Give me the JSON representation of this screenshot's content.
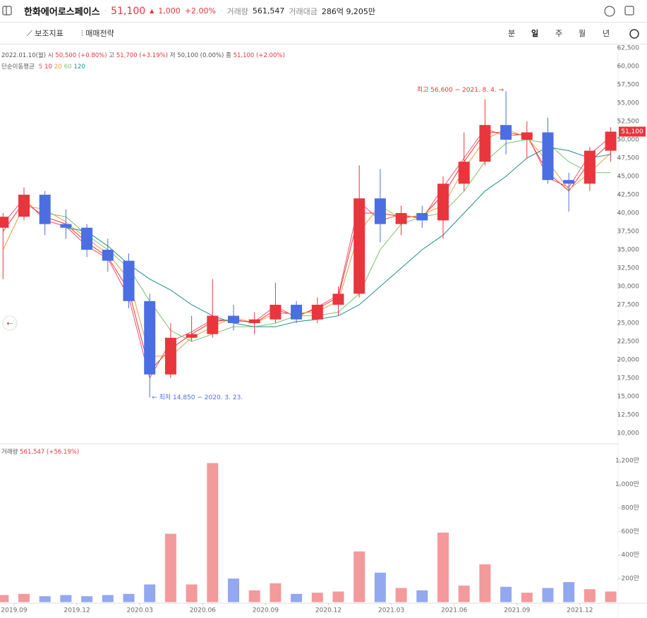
{
  "header": {
    "name": "한화에어로스페이스",
    "price": "51,100",
    "change": "1,000",
    "change_pct": "+2.00%",
    "volume_label": "거래량",
    "volume": "561,547",
    "amount_label": "거래대금",
    "amount": "286억 9,205만"
  },
  "toolbar": {
    "indicators": "보조지표",
    "strategy": "매매전략",
    "periods": [
      "분",
      "일",
      "주",
      "월",
      "년"
    ]
  },
  "ohlc": {
    "date": "2022.01.10(월)",
    "open_label": "시",
    "open": "50,500 (+0.80%)",
    "high_label": "고",
    "high": "51,700 (+3.19%)",
    "low_label": "저",
    "low": "50,100 (0.00%)",
    "close_label": "종",
    "close": "51,100 (+2.00%)"
  },
  "ma_label": "단순이동평균",
  "volume_info": {
    "label": "거래량",
    "value": "561,547 (+56.19%)"
  },
  "chart_data": [
    {
      "type": "candlestick",
      "x": [
        "2019.08",
        "2019.09",
        "2019.10",
        "2019.11",
        "2019.12",
        "2020.01",
        "2020.02",
        "2020.03",
        "2020.04",
        "2020.05",
        "2020.06",
        "2020.07",
        "2020.08",
        "2020.09",
        "2020.10",
        "2020.11",
        "2020.12",
        "2021.01",
        "2021.02",
        "2021.03",
        "2021.04",
        "2021.05",
        "2021.06",
        "2021.07",
        "2021.08",
        "2021.09",
        "2021.10",
        "2021.11",
        "2021.12",
        "2022.01"
      ],
      "open": [
        38000,
        39500,
        42500,
        38500,
        38000,
        35000,
        33500,
        28000,
        18000,
        23000,
        23500,
        26000,
        25000,
        25500,
        27500,
        25500,
        27500,
        29000,
        42000,
        38500,
        40000,
        39000,
        44000,
        47000,
        52000,
        50000,
        51000,
        44500,
        44000,
        48500
      ],
      "high": [
        40000,
        43500,
        43000,
        40500,
        38500,
        36500,
        34500,
        29000,
        25000,
        26000,
        31000,
        27500,
        26500,
        30500,
        28000,
        28500,
        30000,
        46500,
        46000,
        41000,
        41000,
        45000,
        51000,
        55500,
        56600,
        52500,
        53000,
        45500,
        49000,
        51700
      ],
      "low": [
        31000,
        39000,
        37000,
        36500,
        34000,
        32000,
        27000,
        14850,
        17500,
        22500,
        23000,
        24000,
        23500,
        25000,
        25000,
        25000,
        26000,
        28500,
        36000,
        37000,
        38000,
        36500,
        43000,
        46500,
        48000,
        47500,
        44000,
        40200,
        43000,
        47000
      ],
      "close": [
        39500,
        42500,
        38500,
        38000,
        35000,
        33500,
        28000,
        18000,
        23000,
        23500,
        26000,
        25000,
        25500,
        27500,
        25500,
        27500,
        29000,
        42000,
        38500,
        40000,
        39000,
        44000,
        47000,
        52000,
        50000,
        51000,
        44500,
        44000,
        48500,
        51100
      ],
      "up_color": "#e8363c",
      "down_color": "#4b6ee3",
      "series": [
        {
          "name": "5",
          "color": "#f0506e",
          "values": [
            38500,
            42000,
            39000,
            38200,
            35500,
            33800,
            28500,
            17500,
            22500,
            23800,
            25500,
            25300,
            25200,
            27300,
            25800,
            27200,
            28800,
            41500,
            39000,
            39800,
            39200,
            43500,
            47500,
            51500,
            50500,
            50800,
            44800,
            43500,
            48000,
            50400
          ]
        },
        {
          "name": "10",
          "color": "#e8363c",
          "values": [
            37500,
            41500,
            39500,
            38500,
            36000,
            34000,
            29500,
            18500,
            21500,
            23500,
            25200,
            25500,
            25000,
            26800,
            26000,
            27000,
            28500,
            40000,
            40000,
            39500,
            39500,
            42500,
            47000,
            51000,
            51000,
            50500,
            45500,
            43000,
            47000,
            49600
          ]
        },
        {
          "name": "20",
          "color": "#f29a3a",
          "values": [
            35000,
            41000,
            40500,
            38800,
            36500,
            34500,
            31000,
            20500,
            20500,
            23000,
            24500,
            25800,
            25000,
            26300,
            26300,
            26600,
            28000,
            37500,
            41000,
            39200,
            39800,
            41000,
            46000,
            50000,
            51500,
            50300,
            47000,
            43200,
            45500,
            48200
          ]
        },
        {
          "name": "60",
          "color": "#7cc06d",
          "values": [
            null,
            null,
            40000,
            39500,
            37000,
            35000,
            32500,
            28000,
            24000,
            22500,
            23500,
            24500,
            24500,
            25000,
            26000,
            26000,
            26500,
            29000,
            35000,
            38500,
            39500,
            40000,
            43000,
            47000,
            49500,
            50000,
            49500,
            47000,
            45500,
            45500
          ]
        },
        {
          "name": "120",
          "color": "#1e8e84",
          "values": [
            null,
            null,
            null,
            38000,
            37500,
            35500,
            33000,
            31000,
            29500,
            27500,
            26000,
            25000,
            24500,
            24500,
            25200,
            25500,
            26000,
            27500,
            30000,
            32500,
            35000,
            37000,
            40000,
            43000,
            45000,
            47500,
            49000,
            48500,
            47500,
            48000
          ]
        }
      ],
      "ylim": [
        8650,
        63080
      ],
      "yticks": [
        {
          "value": 10000,
          "label": "10,000"
        },
        {
          "value": 12500,
          "label": "12,500"
        },
        {
          "value": 15000,
          "label": "15,000"
        },
        {
          "value": 17500,
          "label": "17,500"
        },
        {
          "value": 20000,
          "label": "20,000"
        },
        {
          "value": 22500,
          "label": "22,500"
        },
        {
          "value": 25000,
          "label": "25,000"
        },
        {
          "value": 27500,
          "label": "27,500"
        },
        {
          "value": 30000,
          "label": "30,000"
        },
        {
          "value": 32500,
          "label": "32,500"
        },
        {
          "value": 35000,
          "label": "35,000"
        },
        {
          "value": 37500,
          "label": "37,500"
        },
        {
          "value": 40000,
          "label": "40,000"
        },
        {
          "value": 42500,
          "label": "42,500"
        },
        {
          "value": 45000,
          "label": "45,000"
        },
        {
          "value": 47500,
          "label": "47,500"
        },
        {
          "value": 50000,
          "label": "50,000"
        },
        {
          "value": 52500,
          "label": "52,500"
        },
        {
          "value": 55000,
          "label": "55,000"
        },
        {
          "value": 57500,
          "label": "57,500"
        },
        {
          "value": 60000,
          "label": "60,000"
        },
        {
          "value": 62500,
          "label": "62,500"
        }
      ],
      "price_label": "51,100",
      "annotations": [
        "최고 56,600 − 2021. 8. 4. →",
        "← 최저 14,850 − 2020. 3. 23."
      ]
    },
    {
      "type": "bar",
      "x": [
        "2019.08",
        "2019.09",
        "2019.10",
        "2019.11",
        "2019.12",
        "2020.01",
        "2020.02",
        "2020.03",
        "2020.04",
        "2020.05",
        "2020.06",
        "2020.07",
        "2020.08",
        "2020.09",
        "2020.10",
        "2020.11",
        "2020.12",
        "2021.01",
        "2021.02",
        "2021.03",
        "2021.04",
        "2021.05",
        "2021.06",
        "2021.07",
        "2021.08",
        "2021.09",
        "2021.10",
        "2021.11",
        "2021.12",
        "2022.01"
      ],
      "values": [
        60,
        70,
        50,
        60,
        50,
        60,
        70,
        150,
        580,
        150,
        1180,
        200,
        100,
        160,
        70,
        80,
        90,
        430,
        250,
        120,
        100,
        590,
        140,
        320,
        130,
        80,
        120,
        170,
        110,
        90
      ],
      "ylim": [
        0,
        1338
      ],
      "yticks": [
        {
          "value": 200,
          "label": "200만"
        },
        {
          "value": 400,
          "label": "400만"
        },
        {
          "value": 600,
          "label": "600만"
        },
        {
          "value": 800,
          "label": "800만"
        },
        {
          "value": 1000,
          "label": "1,000만"
        },
        {
          "value": 1200,
          "label": "1,200만"
        }
      ],
      "xticks": [
        "2019.09",
        "2019.12",
        "2020.03",
        "2020.06",
        "2020.09",
        "2020.12",
        "2021.03",
        "2021.06",
        "2021.09",
        "2021.12"
      ]
    }
  ]
}
